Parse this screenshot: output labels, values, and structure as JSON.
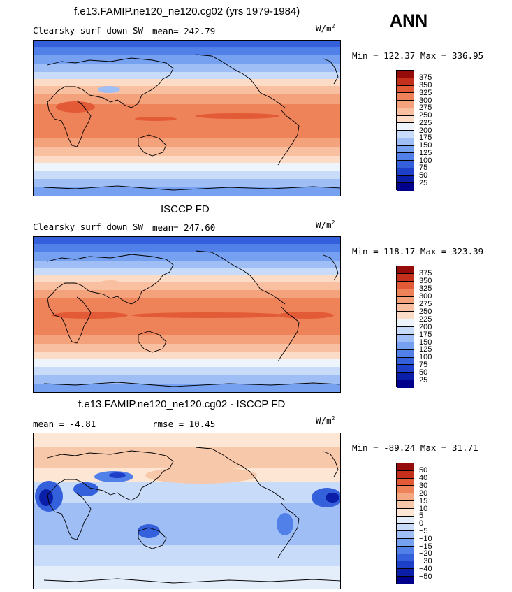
{
  "season": "ANN",
  "colors": {
    "abs_scale": [
      "#00008c",
      "#0a1ea8",
      "#1e40c8",
      "#3460dc",
      "#5080e8",
      "#76a0f0",
      "#a0bef6",
      "#c8dcfa",
      "#eef4fb",
      "#fcdcc6",
      "#f8c0a0",
      "#f4a27c",
      "#ee8258",
      "#e25a36",
      "#c4301c",
      "#960c0a"
    ],
    "diff_scale": [
      "#00008c",
      "#0a1ea8",
      "#1e40c8",
      "#3460dc",
      "#5080e8",
      "#76a0f0",
      "#a0bef6",
      "#c8dcfa",
      "#e4eefa",
      "#fde6d4",
      "#f8c8aa",
      "#f4a882",
      "#ee8258",
      "#e25a36",
      "#c4301c",
      "#960c0a"
    ]
  },
  "panel1": {
    "title": "f.e13.FAMIP.ne120_ne120.cg02 (yrs 1979-1984)",
    "variable": "Clearsky surf down SW",
    "mean": "mean= 242.79",
    "units": "W/m",
    "units_exp": "2",
    "minmax": "Min = 122.37 Max = 336.95",
    "levels": [
      "375",
      "350",
      "325",
      "300",
      "275",
      "250",
      "225",
      "200",
      "175",
      "150",
      "125",
      "100",
      "75",
      "50",
      "25"
    ]
  },
  "panel2": {
    "title": "ISCCP FD",
    "variable": "Clearsky surf down SW",
    "mean": "mean= 247.60",
    "units": "W/m",
    "units_exp": "2",
    "minmax": "Min = 118.17 Max = 323.39",
    "levels": [
      "375",
      "350",
      "325",
      "300",
      "275",
      "250",
      "225",
      "200",
      "175",
      "150",
      "125",
      "100",
      "75",
      "50",
      "25"
    ]
  },
  "panel3": {
    "title": "f.e13.FAMIP.ne120_ne120.cg02 - ISCCP FD",
    "mean": "mean =   -4.81",
    "rmse": "rmse =   10.45",
    "units": "W/m",
    "units_exp": "2",
    "minmax": "Min = -89.24 Max =  31.71",
    "levels": [
      "50",
      "40",
      "30",
      "20",
      "15",
      "10",
      "5",
      "0",
      "−5",
      "−10",
      "−15",
      "−20",
      "−30",
      "−40",
      "−50"
    ]
  }
}
